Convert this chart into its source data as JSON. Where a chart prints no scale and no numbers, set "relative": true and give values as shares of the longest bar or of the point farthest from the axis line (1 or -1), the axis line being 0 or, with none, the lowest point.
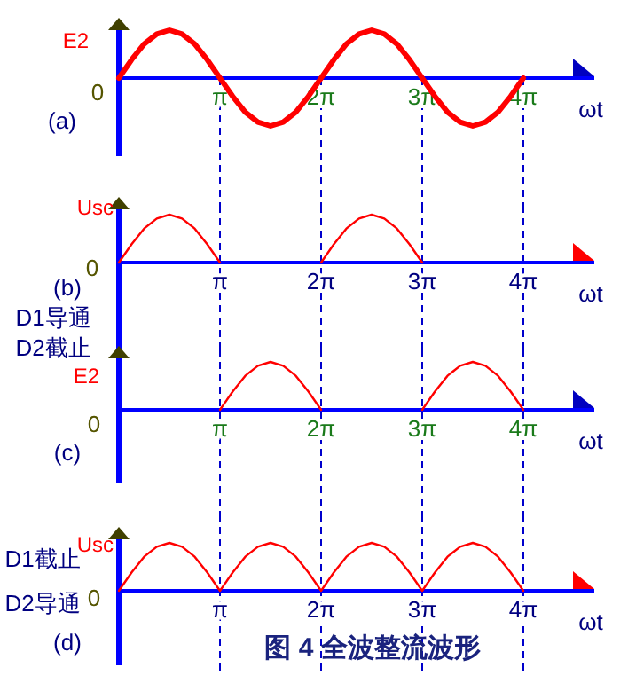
{
  "chart_data": [
    {
      "type": "line",
      "ylabel": "E2",
      "xlabel": "ωt",
      "relative": true,
      "categories": [
        null,
        null,
        null,
        null,
        null,
        null,
        null,
        null,
        "π",
        null,
        null,
        null,
        null,
        null,
        null,
        null,
        "2π",
        null,
        null,
        null,
        null,
        null,
        null,
        null,
        "3π",
        null,
        null,
        null,
        null,
        null,
        null,
        null,
        "4π"
      ],
      "series": [
        {
          "color": "#ff0000",
          "values": [
            0,
            0.38,
            0.71,
            0.92,
            1,
            0.92,
            0.71,
            0.38,
            0,
            -0.38,
            -0.71,
            -0.92,
            -1,
            -0.92,
            -0.71,
            -0.38,
            0,
            0.38,
            0.71,
            0.92,
            1,
            0.92,
            0.71,
            0.38,
            0,
            -0.38,
            -0.71,
            -0.92,
            -1,
            -0.92,
            -0.71,
            -0.38,
            0
          ]
        }
      ],
      "ref_lines": [
        {
          "axis": "x",
          "value": "π",
          "color": "#0000cc",
          "line_style": "dashed"
        },
        {
          "axis": "x",
          "value": "2π",
          "color": "#0000cc",
          "line_style": "dashed"
        },
        {
          "axis": "x",
          "value": "3π",
          "color": "#0000cc",
          "line_style": "dashed"
        },
        {
          "axis": "x",
          "value": "4π",
          "color": "#0000cc",
          "line_style": "dashed"
        }
      ],
      "annotations": [
        "0",
        "(a)"
      ]
    },
    {
      "type": "line",
      "ylabel": "Usc",
      "xlabel": "ωt",
      "relative": true,
      "categories": [
        null,
        null,
        null,
        null,
        null,
        null,
        null,
        null,
        "π",
        null,
        null,
        null,
        null,
        null,
        null,
        null,
        "2π",
        null,
        null,
        null,
        null,
        null,
        null,
        null,
        "3π",
        null,
        null,
        null,
        null,
        null,
        null,
        null,
        "4π"
      ],
      "series": [
        {
          "color": "#ff0000",
          "values": [
            0,
            0.38,
            0.71,
            0.92,
            1,
            0.92,
            0.71,
            0.38,
            0,
            null,
            null,
            null,
            null,
            null,
            null,
            null,
            0,
            0.38,
            0.71,
            0.92,
            1,
            0.92,
            0.71,
            0.38,
            0,
            null,
            null,
            null,
            null,
            null,
            null,
            null,
            null
          ]
        }
      ],
      "ref_lines": [
        {
          "axis": "x",
          "value": "π",
          "color": "#0000cc",
          "line_style": "dashed"
        },
        {
          "axis": "x",
          "value": "2π",
          "color": "#0000cc",
          "line_style": "dashed"
        },
        {
          "axis": "x",
          "value": "3π",
          "color": "#0000cc",
          "line_style": "dashed"
        },
        {
          "axis": "x",
          "value": "4π",
          "color": "#0000cc",
          "line_style": "dashed"
        }
      ],
      "annotations": [
        "0",
        "(b)",
        "D1导通",
        "D2截止"
      ]
    },
    {
      "type": "line",
      "ylabel": "E2",
      "xlabel": "ωt",
      "relative": true,
      "categories": [
        null,
        null,
        null,
        null,
        null,
        null,
        null,
        null,
        "π",
        null,
        null,
        null,
        null,
        null,
        null,
        null,
        "2π",
        null,
        null,
        null,
        null,
        null,
        null,
        null,
        "3π",
        null,
        null,
        null,
        null,
        null,
        null,
        null,
        "4π"
      ],
      "series": [
        {
          "color": "#ff0000",
          "values": [
            null,
            null,
            null,
            null,
            null,
            null,
            null,
            null,
            0,
            0.38,
            0.71,
            0.92,
            1,
            0.92,
            0.71,
            0.38,
            0,
            null,
            null,
            null,
            null,
            null,
            null,
            null,
            0,
            0.38,
            0.71,
            0.92,
            1,
            0.92,
            0.71,
            0.38,
            0
          ]
        }
      ],
      "ref_lines": [
        {
          "axis": "x",
          "value": "π",
          "color": "#0000cc",
          "line_style": "dashed"
        },
        {
          "axis": "x",
          "value": "2π",
          "color": "#0000cc",
          "line_style": "dashed"
        },
        {
          "axis": "x",
          "value": "3π",
          "color": "#0000cc",
          "line_style": "dashed"
        },
        {
          "axis": "x",
          "value": "4π",
          "color": "#0000cc",
          "line_style": "dashed"
        }
      ],
      "annotations": [
        "0",
        "(c)"
      ]
    },
    {
      "type": "line",
      "ylabel": "Usc",
      "xlabel": "ωt",
      "relative": true,
      "categories": [
        null,
        null,
        null,
        null,
        null,
        null,
        null,
        null,
        "π",
        null,
        null,
        null,
        null,
        null,
        null,
        null,
        "2π",
        null,
        null,
        null,
        null,
        null,
        null,
        null,
        "3π",
        null,
        null,
        null,
        null,
        null,
        null,
        null,
        "4π"
      ],
      "series": [
        {
          "color": "#ff0000",
          "values": [
            0,
            0.38,
            0.71,
            0.92,
            1,
            0.92,
            0.71,
            0.38,
            0,
            0.38,
            0.71,
            0.92,
            1,
            0.92,
            0.71,
            0.38,
            0,
            0.38,
            0.71,
            0.92,
            1,
            0.92,
            0.71,
            0.38,
            0,
            0.38,
            0.71,
            0.92,
            1,
            0.92,
            0.71,
            0.38,
            0
          ]
        }
      ],
      "ref_lines": [
        {
          "axis": "x",
          "value": "π",
          "color": "#0000cc",
          "line_style": "dashed"
        },
        {
          "axis": "x",
          "value": "2π",
          "color": "#0000cc",
          "line_style": "dashed"
        },
        {
          "axis": "x",
          "value": "3π",
          "color": "#0000cc",
          "line_style": "dashed"
        },
        {
          "axis": "x",
          "value": "4π",
          "color": "#0000cc",
          "line_style": "dashed"
        }
      ],
      "annotations": [
        "D1截止",
        "D2导通",
        "0",
        "(d)",
        "图 4 全波整流波形"
      ]
    }
  ]
}
